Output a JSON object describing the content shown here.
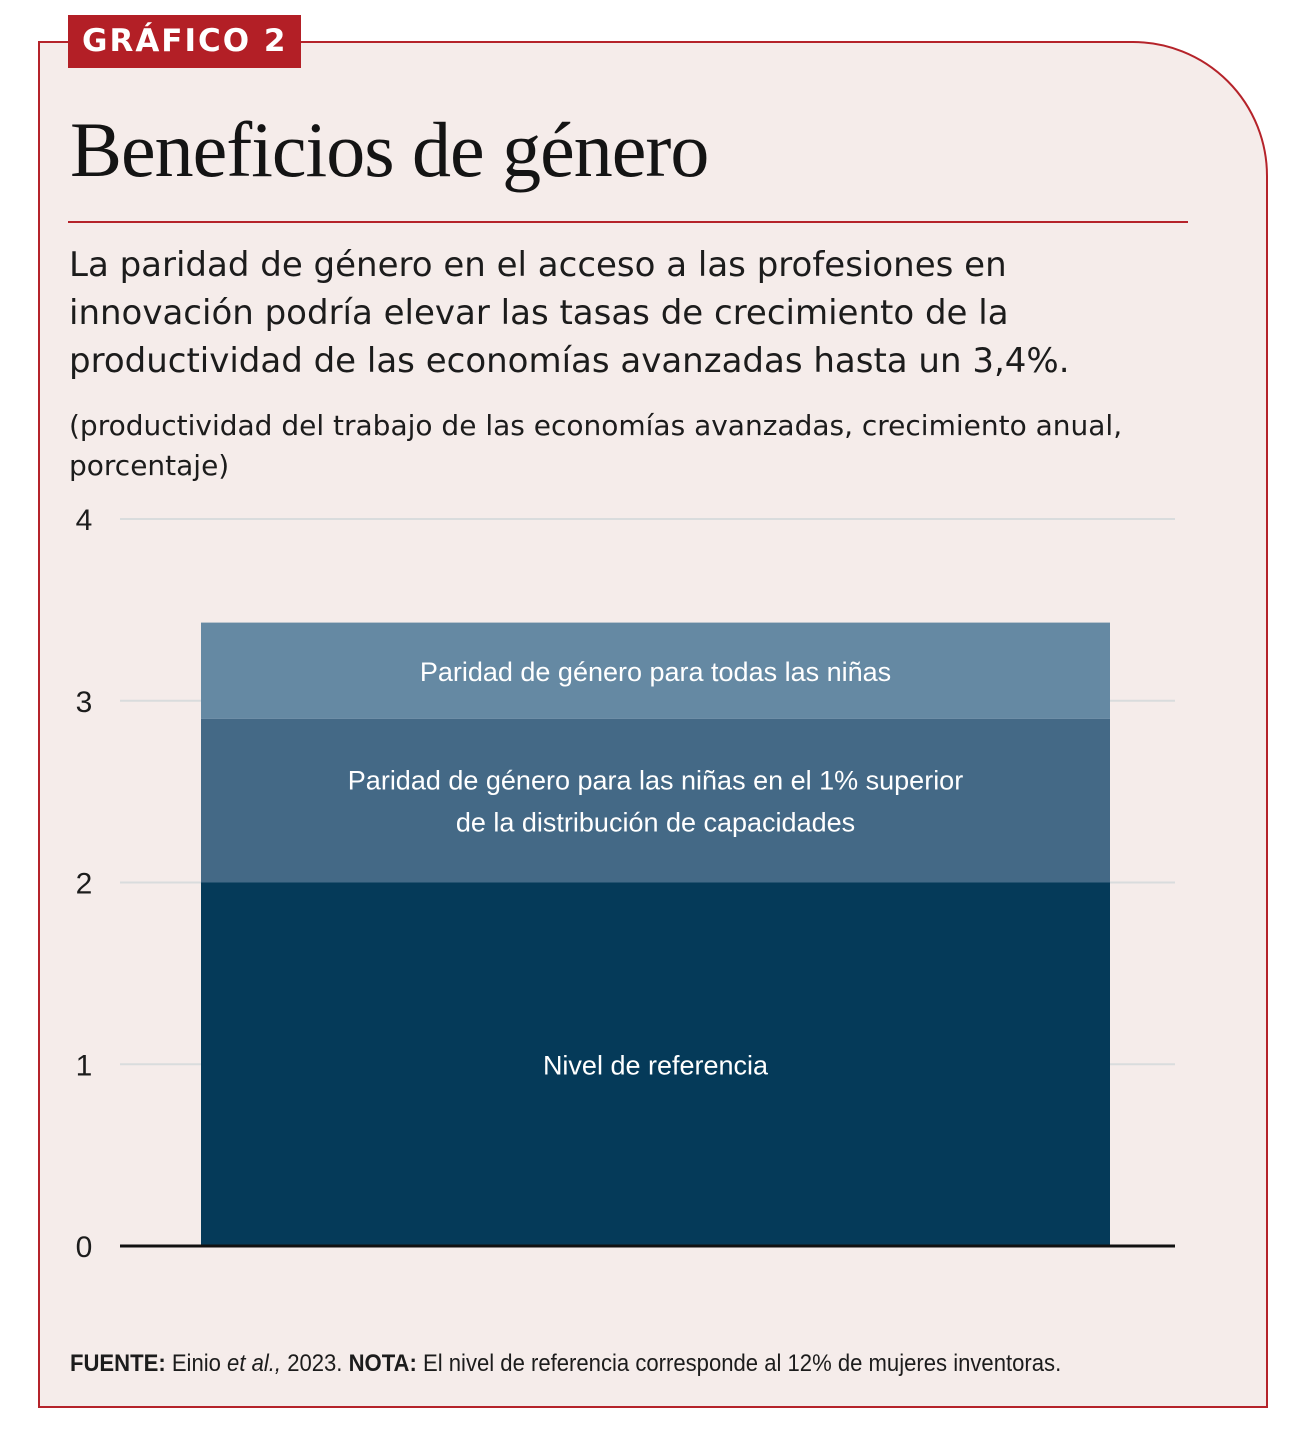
{
  "header": {
    "tag": "GRÁFICO 2",
    "title": "Beneficios de género",
    "subtitle": "La paridad de género en el acceso a las profesiones en innovación podría elevar las tasas de crecimiento de la productividad de las economías avanzadas hasta un 3,4%.",
    "units": "(productividad del trabajo de las economías avanzadas, crecimiento anual, porcentaje)"
  },
  "chart_data": {
    "type": "bar",
    "stacked": true,
    "categories": [
      ""
    ],
    "ylim": [
      0,
      4
    ],
    "yticks": [
      "0",
      "1",
      "2",
      "3",
      "4"
    ],
    "grid": true,
    "series": [
      {
        "name": "Nivel de referencia",
        "values": [
          2.0
        ],
        "color": "#053a59"
      },
      {
        "name": "Paridad de género para las niñas en el 1% superior de la distribución de capacidades",
        "values": [
          0.9
        ],
        "color": "#446986"
      },
      {
        "name": "Paridad de género para todas las niñas",
        "values": [
          0.53
        ],
        "color": "#6589a3"
      }
    ]
  },
  "footnote": {
    "source_label": "FUENTE:",
    "source_text": " Einio ",
    "source_italic": "et al.,",
    "source_year": " 2023. ",
    "note_label": "NOTA:",
    "note_text": " El nivel de referencia corresponde al 12% de mujeres inventoras."
  },
  "colors": {
    "accent": "#b5232a",
    "background": "#f5ecea",
    "grid": "#d9dcdd"
  }
}
